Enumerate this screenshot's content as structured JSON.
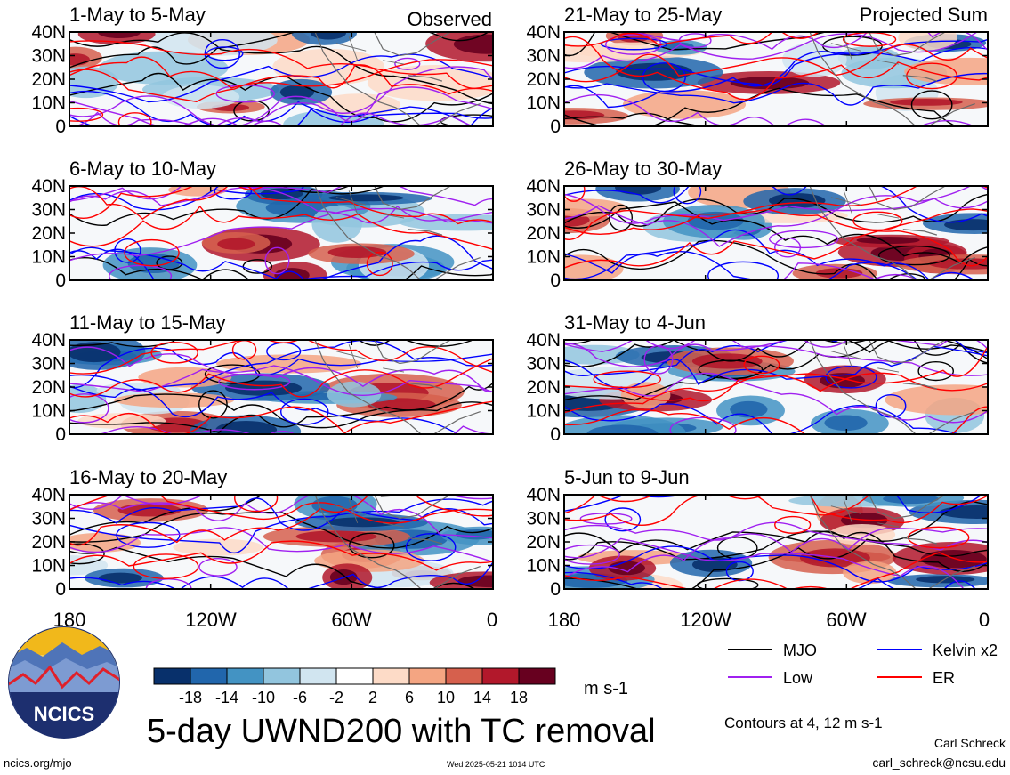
{
  "left_column_label": "Observed",
  "right_column_label": "Projected Sum",
  "panels": [
    {
      "title": "1-May to 5-May"
    },
    {
      "title": "6-May to 10-May"
    },
    {
      "title": "11-May to 15-May"
    },
    {
      "title": "16-May to 20-May"
    },
    {
      "title": "21-May to 25-May"
    },
    {
      "title": "26-May to 30-May"
    },
    {
      "title": "31-May to 4-Jun"
    },
    {
      "title": "5-Jun to 9-Jun"
    }
  ],
  "lat_labels": [
    "40N",
    "30N",
    "20N",
    "10N",
    "0"
  ],
  "lon_labels": [
    "180",
    "120W",
    "60W",
    "0"
  ],
  "colorbar": {
    "colors": [
      "#08306b",
      "#2166ac",
      "#4393c3",
      "#92c5de",
      "#d1e5f0",
      "#ffffff",
      "#fddbc7",
      "#f4a582",
      "#d6604d",
      "#b2182b",
      "#67001f"
    ],
    "labels": [
      "-18",
      "-14",
      "-10",
      "-6",
      "-2",
      "2",
      "6",
      "10",
      "14",
      "18"
    ],
    "units": "m s-1"
  },
  "legend": [
    {
      "label": "MJO",
      "color": "#000000"
    },
    {
      "label": "Kelvin x2",
      "color": "#0000ff"
    },
    {
      "label": "Low",
      "color": "#a020f0"
    },
    {
      "label": "ER",
      "color": "#ff0000"
    }
  ],
  "contour_note": "Contours at 4, 12 m s-1",
  "main_title": "5-day UWND200 with TC removal",
  "logo_text": "NCICS",
  "author": "Carl Schreck",
  "email": "carl_schreck@ncsu.edu",
  "website": "ncics.org/mjo",
  "timestamp": "Wed 2025-05-21 1014 UTC"
}
